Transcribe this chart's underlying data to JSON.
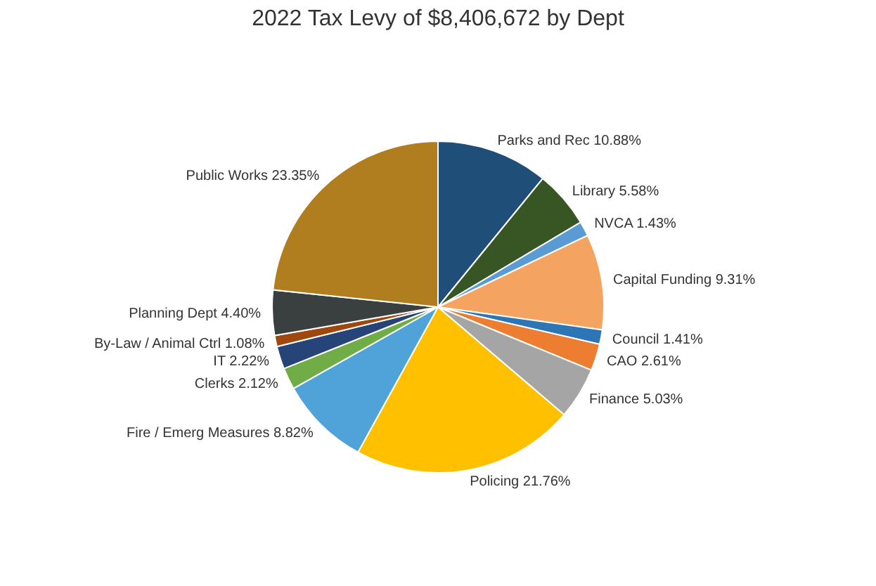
{
  "chart_data": {
    "type": "pie",
    "title": "2022 Tax Levy of $8,406,672 by Dept",
    "categories": [
      "Parks and Rec",
      "Library",
      "NVCA",
      "Capital Funding",
      "Council",
      "CAO",
      "Finance",
      "Policing",
      "Fire / Emerg Measures",
      "Clerks",
      "IT",
      "By-Law / Animal Ctrl",
      "Planning Dept",
      "Public Works"
    ],
    "values": [
      10.88,
      5.58,
      1.43,
      9.31,
      1.41,
      2.61,
      5.03,
      21.76,
      8.82,
      2.12,
      2.22,
      1.08,
      4.4,
      23.35
    ],
    "value_labels": [
      "10.88%",
      "5.58%",
      "1.43%",
      "9.31%",
      "1.41%",
      "2.61%",
      "5.03%",
      "21.76%",
      "8.82%",
      "2.12%",
      "2.22%",
      "1.08%",
      "4.40%",
      "23.35%"
    ],
    "colors": [
      "#1f4e79",
      "#375623",
      "#5b9bd5",
      "#f4a460",
      "#2e75b6",
      "#ed7d31",
      "#a5a5a5",
      "#ffc000",
      "#4fa3d8",
      "#70ad47",
      "#264478",
      "#9e480e",
      "#3a3f3f",
      "#b07d1f"
    ],
    "legend": false
  }
}
